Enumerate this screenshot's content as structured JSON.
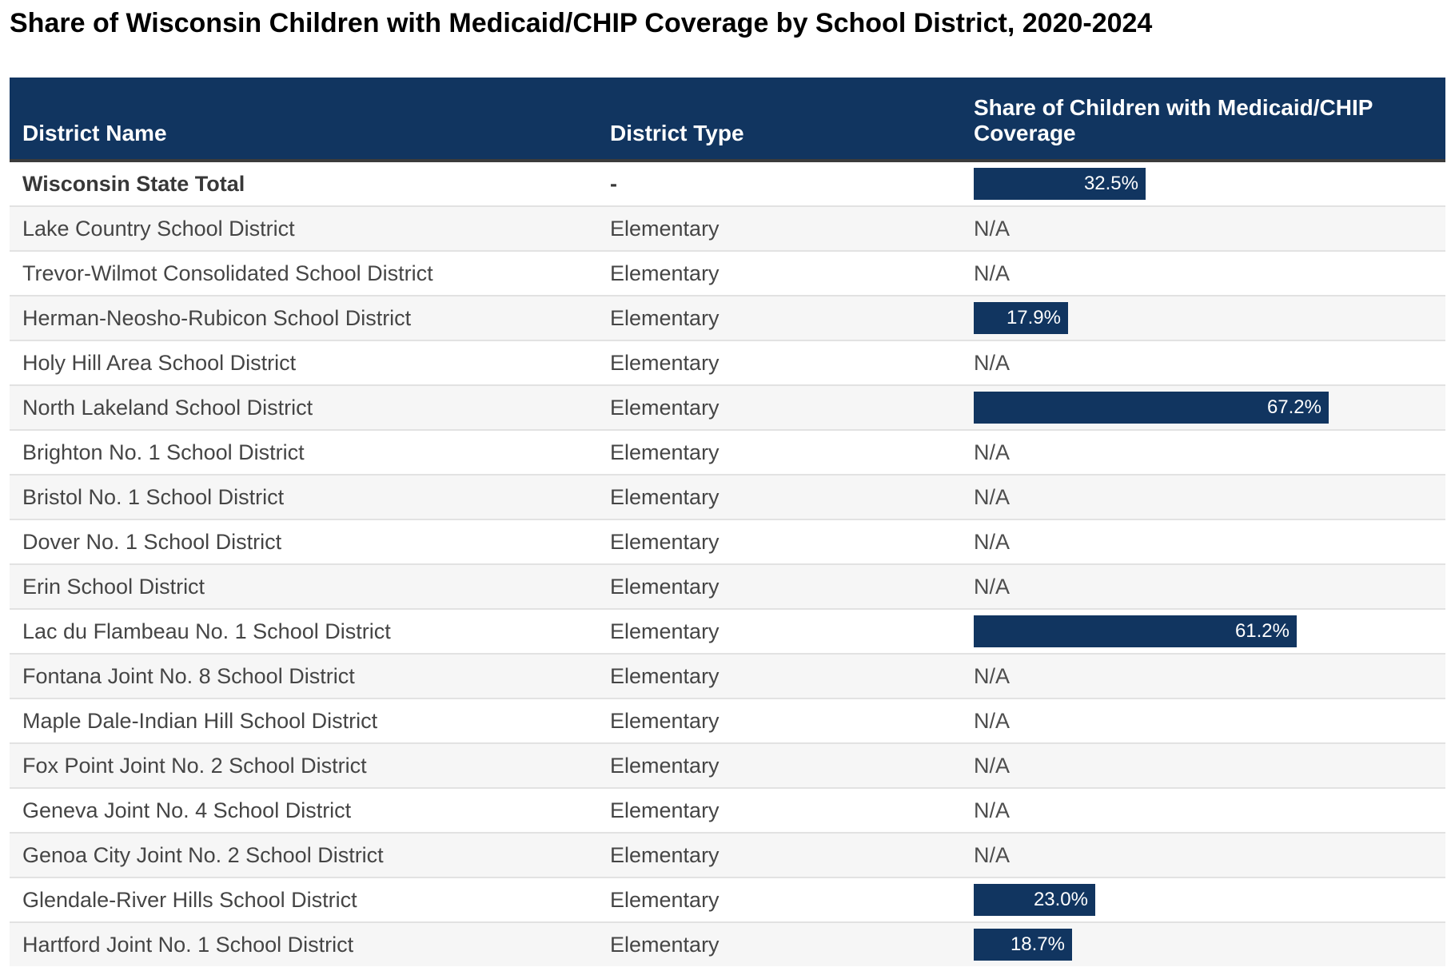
{
  "title": "Share of Wisconsin Children with Medicaid/CHIP Coverage by School District, 2020-2024",
  "colors": {
    "header_bg": "#113560",
    "bar_fill": "#113560",
    "header_text": "#ffffff",
    "header_bottom_border": "#3b3b3b",
    "row_alt_bg": "#f6f6f6",
    "row_border": "#e2e2e2",
    "body_text": "#454545",
    "na_text": "#4d4d4d",
    "title_text": "#000000"
  },
  "table": {
    "columns": [
      "District Name",
      "District Type",
      "Share of Children with Medicaid/CHIP Coverage"
    ],
    "rows": [
      {
        "name": "Wisconsin State Total",
        "type": "-",
        "share": 32.5,
        "share_label": "32.5%",
        "bold": true
      },
      {
        "name": "Lake Country School District",
        "type": "Elementary",
        "share": null,
        "share_label": "N/A",
        "bold": false
      },
      {
        "name": "Trevor-Wilmot Consolidated School District",
        "type": "Elementary",
        "share": null,
        "share_label": "N/A",
        "bold": false
      },
      {
        "name": "Herman-Neosho-Rubicon School District",
        "type": "Elementary",
        "share": 17.9,
        "share_label": "17.9%",
        "bold": false
      },
      {
        "name": "Holy Hill Area School District",
        "type": "Elementary",
        "share": null,
        "share_label": "N/A",
        "bold": false
      },
      {
        "name": "North Lakeland School District",
        "type": "Elementary",
        "share": 67.2,
        "share_label": "67.2%",
        "bold": false
      },
      {
        "name": "Brighton No. 1 School District",
        "type": "Elementary",
        "share": null,
        "share_label": "N/A",
        "bold": false
      },
      {
        "name": "Bristol No. 1 School District",
        "type": "Elementary",
        "share": null,
        "share_label": "N/A",
        "bold": false
      },
      {
        "name": "Dover No. 1 School District",
        "type": "Elementary",
        "share": null,
        "share_label": "N/A",
        "bold": false
      },
      {
        "name": "Erin School District",
        "type": "Elementary",
        "share": null,
        "share_label": "N/A",
        "bold": false
      },
      {
        "name": "Lac du Flambeau No. 1 School District",
        "type": "Elementary",
        "share": 61.2,
        "share_label": "61.2%",
        "bold": false
      },
      {
        "name": "Fontana Joint No. 8 School District",
        "type": "Elementary",
        "share": null,
        "share_label": "N/A",
        "bold": false
      },
      {
        "name": "Maple Dale-Indian Hill School District",
        "type": "Elementary",
        "share": null,
        "share_label": "N/A",
        "bold": false
      },
      {
        "name": "Fox Point Joint No. 2 School District",
        "type": "Elementary",
        "share": null,
        "share_label": "N/A",
        "bold": false
      },
      {
        "name": "Geneva Joint No. 4 School District",
        "type": "Elementary",
        "share": null,
        "share_label": "N/A",
        "bold": false
      },
      {
        "name": "Genoa City Joint No. 2 School District",
        "type": "Elementary",
        "share": null,
        "share_label": "N/A",
        "bold": false
      },
      {
        "name": "Glendale-River Hills School District",
        "type": "Elementary",
        "share": 23.0,
        "share_label": "23.0%",
        "bold": false
      },
      {
        "name": "Hartford Joint No. 1 School District",
        "type": "Elementary",
        "share": 18.7,
        "share_label": "18.7%",
        "bold": false
      }
    ]
  },
  "chart_data": {
    "type": "table",
    "title": "Share of Wisconsin Children with Medicaid/CHIP Coverage by School District, 2020-2024",
    "columns": [
      "District Name",
      "District Type",
      "Share of Children with Medicaid/CHIP Coverage"
    ],
    "bar_column": "Share of Children with Medicaid/CHIP Coverage",
    "bar_unit": "%",
    "categories": [
      "Wisconsin State Total",
      "Lake Country School District",
      "Trevor-Wilmot Consolidated School District",
      "Herman-Neosho-Rubicon School District",
      "Holy Hill Area School District",
      "North Lakeland School District",
      "Brighton No. 1 School District",
      "Bristol No. 1 School District",
      "Dover No. 1 School District",
      "Erin School District",
      "Lac du Flambeau No. 1 School District",
      "Fontana Joint No. 8 School District",
      "Maple Dale-Indian Hill School District",
      "Fox Point Joint No. 2 School District",
      "Geneva Joint No. 4 School District",
      "Genoa City Joint No. 2 School District",
      "Glendale-River Hills School District",
      "Hartford Joint No. 1 School District"
    ],
    "district_types": [
      "-",
      "Elementary",
      "Elementary",
      "Elementary",
      "Elementary",
      "Elementary",
      "Elementary",
      "Elementary",
      "Elementary",
      "Elementary",
      "Elementary",
      "Elementary",
      "Elementary",
      "Elementary",
      "Elementary",
      "Elementary",
      "Elementary",
      "Elementary"
    ],
    "values": [
      32.5,
      null,
      null,
      17.9,
      null,
      67.2,
      null,
      null,
      null,
      null,
      61.2,
      null,
      null,
      null,
      null,
      null,
      23.0,
      18.7
    ],
    "value_labels": [
      "32.5%",
      "N/A",
      "N/A",
      "17.9%",
      "N/A",
      "67.2%",
      "N/A",
      "N/A",
      "N/A",
      "N/A",
      "61.2%",
      "N/A",
      "N/A",
      "N/A",
      "N/A",
      "N/A",
      "23.0%",
      "18.7%"
    ]
  }
}
